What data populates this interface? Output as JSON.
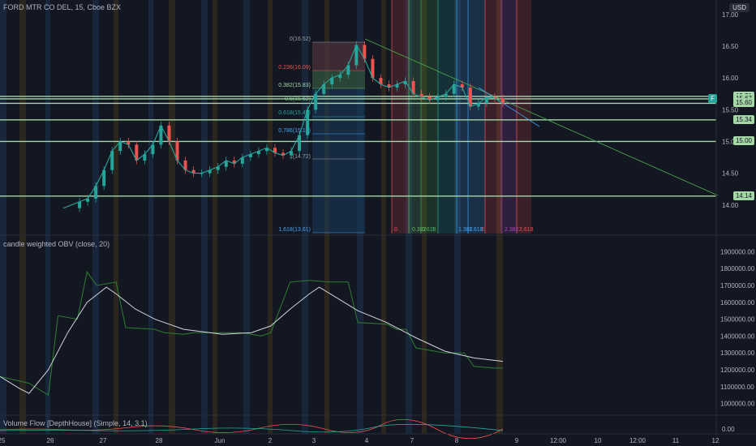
{
  "header": {
    "symbol_line": "FORD MTR CO DEL, 15, Cboe BZX",
    "currency": "USD"
  },
  "price_axis": {
    "labels": [
      "17.00",
      "16.50",
      "16.00",
      "15.50",
      "15.00",
      "14.50",
      "14.00"
    ],
    "tags": [
      "15.71",
      "15.67",
      "15.60",
      "15.34",
      "15.00",
      "14.14"
    ],
    "f_badge": "F"
  },
  "fib_labels": {
    "l0": "0(16.52)",
    "l236": "0.236(16.09)",
    "l382": "0.382(15.83)",
    "l5": "0.5(15.62)",
    "l618": "0.618(15.41)",
    "l786": "0.786(15.10)",
    "l1": "1(14.72)",
    "l1618": "1.618(13.61)"
  },
  "fib_time_labels": [
    "0",
    "0.382",
    "0.618",
    "1",
    "1.382",
    "1.618",
    "2",
    "2.382",
    "2.618"
  ],
  "obv_panel": {
    "title": "candle weighted OBV (close, 20)",
    "labels": [
      "1900000.00",
      "1800000.00",
      "1700000.00",
      "1600000.00",
      "1500000.00",
      "1400000.00",
      "1300000.00",
      "1200000.00",
      "1100000.00",
      "1000000.00"
    ]
  },
  "vol_panel": {
    "title": "Volume Flow [DepthHouse] (Simple, 14, 3.1)",
    "label": "0.00"
  },
  "time_axis": [
    "25",
    "26",
    "27",
    "28",
    "Jun",
    "2",
    "3",
    "4",
    "7",
    "8",
    "9",
    "12:00",
    "10",
    "12:00",
    "11",
    "12"
  ],
  "colors": {
    "background": "#131722",
    "bull": "#26a69a",
    "bear": "#ef5350",
    "level_line": "#a5d6a7",
    "obv": "#2e7d32",
    "obv_ma": "#d1d4dc"
  },
  "chart_data": {
    "type": "line",
    "title": "FORD MTR CO DEL, 15, Cboe BZX",
    "ylabel": "",
    "ylim": [
      13.55,
      17.1
    ],
    "horizontal_levels": [
      15.71,
      15.67,
      15.6,
      15.34,
      15.0,
      14.14
    ],
    "price_path": [
      [
        0,
        13.95
      ],
      [
        2,
        14.05
      ],
      [
        3,
        14.1
      ],
      [
        4,
        14.3
      ],
      [
        5,
        14.55
      ],
      [
        6,
        14.85
      ],
      [
        7,
        15.0
      ],
      [
        8,
        14.95
      ],
      [
        9,
        14.7
      ],
      [
        10,
        14.8
      ],
      [
        11,
        14.95
      ],
      [
        12,
        15.25
      ],
      [
        13,
        15.0
      ],
      [
        14,
        14.7
      ],
      [
        15,
        14.55
      ],
      [
        16,
        14.5
      ],
      [
        17,
        14.5
      ],
      [
        18,
        14.55
      ],
      [
        19,
        14.6
      ],
      [
        20,
        14.7
      ],
      [
        21,
        14.65
      ],
      [
        22,
        14.75
      ],
      [
        23,
        14.8
      ],
      [
        24,
        14.85
      ],
      [
        25,
        14.9
      ],
      [
        26,
        14.82
      ],
      [
        27,
        14.78
      ],
      [
        28,
        14.85
      ],
      [
        29,
        15.1
      ],
      [
        30,
        15.5
      ],
      [
        31,
        15.75
      ],
      [
        32,
        15.9
      ],
      [
        33,
        16.0
      ],
      [
        34,
        16.05
      ],
      [
        35,
        16.2
      ],
      [
        36,
        16.52
      ],
      [
        37,
        16.3
      ],
      [
        38,
        16.0
      ],
      [
        39,
        15.9
      ],
      [
        40,
        15.85
      ],
      [
        41,
        15.9
      ],
      [
        42,
        15.95
      ],
      [
        43,
        15.75
      ],
      [
        44,
        15.7
      ],
      [
        45,
        15.65
      ],
      [
        46,
        15.7
      ],
      [
        47,
        15.75
      ],
      [
        48,
        15.9
      ],
      [
        49,
        15.85
      ],
      [
        50,
        15.55
      ],
      [
        51,
        15.6
      ],
      [
        52,
        15.7
      ],
      [
        53,
        15.68
      ],
      [
        54,
        15.6
      ]
    ],
    "obv_series": [
      [
        0,
        1160000
      ],
      [
        3,
        1120000
      ],
      [
        5,
        1050000
      ],
      [
        6,
        1520000
      ],
      [
        8,
        1500000
      ],
      [
        9,
        1780000
      ],
      [
        10,
        1700000
      ],
      [
        12,
        1720000
      ],
      [
        13,
        1450000
      ],
      [
        16,
        1440000
      ],
      [
        17,
        1420000
      ],
      [
        19,
        1410000
      ],
      [
        20,
        1420000
      ],
      [
        25,
        1420000
      ],
      [
        27,
        1400000
      ],
      [
        28,
        1420000
      ],
      [
        29,
        1570000
      ],
      [
        30,
        1720000
      ],
      [
        32,
        1730000
      ],
      [
        34,
        1720000
      ],
      [
        36,
        1720000
      ],
      [
        37,
        1480000
      ],
      [
        40,
        1470000
      ],
      [
        41,
        1440000
      ],
      [
        42,
        1440000
      ],
      [
        43,
        1330000
      ],
      [
        46,
        1300000
      ],
      [
        48,
        1300000
      ],
      [
        49,
        1220000
      ],
      [
        51,
        1210000
      ],
      [
        52,
        1210000
      ]
    ],
    "obv_ma_series": [
      [
        0,
        1160000
      ],
      [
        2,
        1090000
      ],
      [
        3,
        1060000
      ],
      [
        5,
        1200000
      ],
      [
        7,
        1420000
      ],
      [
        9,
        1600000
      ],
      [
        11,
        1690000
      ],
      [
        12,
        1650000
      ],
      [
        14,
        1560000
      ],
      [
        16,
        1500000
      ],
      [
        19,
        1440000
      ],
      [
        23,
        1410000
      ],
      [
        26,
        1420000
      ],
      [
        28,
        1460000
      ],
      [
        30,
        1560000
      ],
      [
        32,
        1650000
      ],
      [
        33,
        1690000
      ],
      [
        35,
        1620000
      ],
      [
        37,
        1550000
      ],
      [
        40,
        1480000
      ],
      [
        43,
        1390000
      ],
      [
        46,
        1310000
      ],
      [
        49,
        1270000
      ],
      [
        52,
        1250000
      ]
    ],
    "obv_ylim": [
      950000,
      1950000
    ]
  }
}
